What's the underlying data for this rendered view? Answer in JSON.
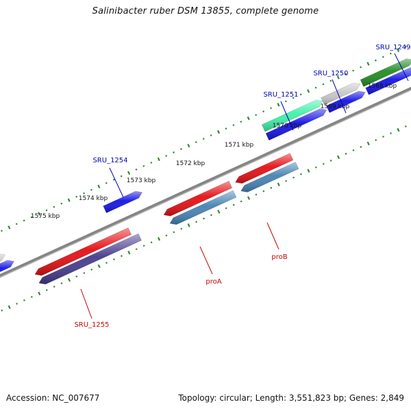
{
  "title": "Salinibacter ruber DSM 13855, complete genome",
  "footer": {
    "accession": "Accession: NC_007677",
    "summary": "Topology: circular; Length: 3,551,823 bp; Genes: 2,849"
  },
  "colors": {
    "backbone": "#858585",
    "tick": "#2e8b2e",
    "forward_label": "#0000b4",
    "reverse_label": "#c80000"
  },
  "scale": {
    "unit": "kbp",
    "ticks": [
      "1575 kbp",
      "1574 kbp",
      "1573 kbp",
      "1572 kbp",
      "1571 kbp",
      "1570 kbp",
      "1569 kbp",
      "1568 kbp"
    ]
  },
  "genes": [
    {
      "label": "",
      "strand": "forward",
      "color": "#c8c8c8"
    },
    {
      "label": "",
      "strand": "forward",
      "color": "#1414e6"
    },
    {
      "label": "SRU_1254",
      "strand": "forward",
      "color": "#1414e6"
    },
    {
      "label": "SRU_1251",
      "strand": "forward",
      "color": "#3cf0a8"
    },
    {
      "label": "",
      "strand": "forward",
      "color": "#1414e6"
    },
    {
      "label": "SRU_1250",
      "strand": "forward",
      "color": "#c8c8c8"
    },
    {
      "label": "",
      "strand": "forward",
      "color": "#1414e6"
    },
    {
      "label": "SRU_1249",
      "strand": "forward",
      "color": "#228b22"
    },
    {
      "label": "",
      "strand": "forward",
      "color": "#1414e6"
    },
    {
      "label": "SRU_1255",
      "strand": "reverse",
      "color": "#e60f14"
    },
    {
      "label": "",
      "strand": "reverse",
      "color": "#463c8c"
    },
    {
      "label": "proA",
      "strand": "reverse",
      "color": "#e60f14"
    },
    {
      "label": "",
      "strand": "reverse",
      "color": "#4682b4"
    },
    {
      "label": "proB",
      "strand": "reverse",
      "color": "#e60f14"
    },
    {
      "label": "",
      "strand": "reverse",
      "color": "#4682b4"
    }
  ]
}
